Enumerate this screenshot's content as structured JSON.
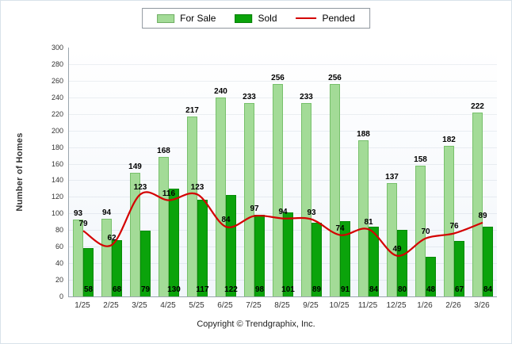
{
  "legend": {
    "for_sale_label": "For Sale",
    "sold_label": "Sold",
    "pended_label": "Pended"
  },
  "footer_text": "Copyright © Trendgraphix, Inc.",
  "colors": {
    "for_sale": "#A3DB97",
    "sold": "#0BA30B",
    "pended": "#D40000"
  },
  "chart_data": {
    "type": "bar",
    "title": "",
    "ylabel": "Number of Homes",
    "xlabel": "",
    "ylim": [
      0,
      300
    ],
    "yticks": [
      0,
      20,
      40,
      60,
      80,
      100,
      120,
      140,
      160,
      180,
      200,
      220,
      240,
      260,
      280,
      300
    ],
    "grid": true,
    "legend_position": "top",
    "categories": [
      "1/25",
      "2/25",
      "3/25",
      "4/25",
      "5/25",
      "6/25",
      "7/25",
      "8/25",
      "9/25",
      "10/25",
      "11/25",
      "12/25",
      "1/26",
      "2/26",
      "3/26"
    ],
    "series": [
      {
        "name": "For Sale",
        "type": "bar",
        "color": "#A3DB97",
        "values": [
          93,
          94,
          149,
          168,
          217,
          240,
          233,
          256,
          233,
          256,
          188,
          137,
          158,
          182,
          222
        ]
      },
      {
        "name": "Sold",
        "type": "bar",
        "color": "#0BA30B",
        "values": [
          58,
          68,
          79,
          130,
          117,
          122,
          98,
          101,
          89,
          91,
          84,
          80,
          48,
          67,
          84
        ]
      },
      {
        "name": "Pended",
        "type": "line",
        "color": "#D40000",
        "values": [
          79,
          62,
          123,
          116,
          123,
          84,
          97,
          94,
          93,
          74,
          81,
          49,
          70,
          76,
          89
        ]
      }
    ]
  }
}
